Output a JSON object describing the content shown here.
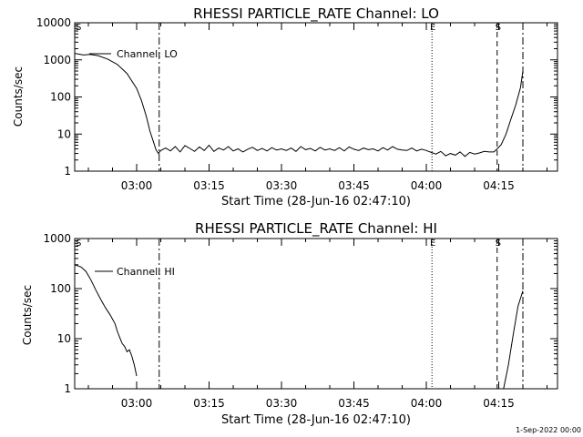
{
  "footer": {
    "date_stamp": "1-Sep-2022 00:00"
  },
  "chart_data": [
    {
      "type": "line",
      "title": "RHESSI PARTICLE_RATE Channel: LO",
      "xlabel": "Start Time (28-Jun-16 02:47:10)",
      "ylabel": "Counts/sec",
      "yscale": "log",
      "ylim": [
        1,
        10000
      ],
      "xlim": [
        "02:47:10",
        "04:27:10"
      ],
      "y_ticks": [
        "1",
        "10",
        "100",
        "1000",
        "10000"
      ],
      "x_ticks": [
        "03:00",
        "03:15",
        "03:30",
        "03:45",
        "04:00",
        "04:15"
      ],
      "legend": "Channel: LO",
      "legend_position": "top-left",
      "markers": [
        {
          "label": "S",
          "time": "02:47:10",
          "style": "none"
        },
        {
          "label": "",
          "time": "03:04:40",
          "style": "dash-dot"
        },
        {
          "label": "E",
          "time": "04:01:10",
          "style": "dotted"
        },
        {
          "label": "S",
          "time": "04:14:40",
          "style": "dashed"
        },
        {
          "label": "",
          "time": "04:20:00",
          "style": "dash-dot"
        }
      ],
      "series": [
        {
          "name": "Channel: LO",
          "x": [
            "02:47:10",
            "02:49:00",
            "02:50:20",
            "02:52:00",
            "02:54:00",
            "02:56:00",
            "02:58:00",
            "03:00:00",
            "03:01:00",
            "03:02:00",
            "03:02:45",
            "03:03:30",
            "03:04:00",
            "03:04:30",
            "03:05:00",
            "03:06:00",
            "03:07:00",
            "03:08:00",
            "03:09:00",
            "03:10:00",
            "03:11:00",
            "03:12:00",
            "03:13:00",
            "03:14:00",
            "03:15:00",
            "03:16:00",
            "03:17:00",
            "03:18:00",
            "03:19:00",
            "03:20:00",
            "03:21:00",
            "03:22:00",
            "03:23:00",
            "03:24:00",
            "03:25:00",
            "03:26:00",
            "03:27:00",
            "03:28:00",
            "03:29:00",
            "03:30:00",
            "03:31:00",
            "03:32:00",
            "03:33:00",
            "03:34:00",
            "03:35:00",
            "03:36:00",
            "03:37:00",
            "03:38:00",
            "03:39:00",
            "03:40:00",
            "03:41:00",
            "03:42:00",
            "03:43:00",
            "03:44:00",
            "03:45:00",
            "03:46:00",
            "03:47:00",
            "03:48:00",
            "03:49:00",
            "03:50:00",
            "03:51:00",
            "03:52:00",
            "03:53:00",
            "03:54:00",
            "03:55:00",
            "03:56:00",
            "03:57:00",
            "03:58:00",
            "03:59:00",
            "04:00:00",
            "04:01:00",
            "04:02:00",
            "04:03:00",
            "04:04:00",
            "04:05:00",
            "04:06:00",
            "04:07:00",
            "04:08:00",
            "04:09:00",
            "04:10:00",
            "04:11:00",
            "04:12:00",
            "04:13:00",
            "04:14:00",
            "04:14:40",
            "04:15:30",
            "04:16:30",
            "04:17:30",
            "04:18:30",
            "04:19:30",
            "04:20:00"
          ],
          "y": [
            1500,
            1350,
            1400,
            1300,
            1050,
            750,
            430,
            170,
            80,
            30,
            12,
            6,
            3.8,
            3.0,
            3.6,
            4.2,
            3.5,
            4.6,
            3.3,
            4.9,
            4.1,
            3.4,
            4.5,
            3.6,
            5.0,
            3.4,
            4.2,
            3.7,
            4.6,
            3.5,
            4.0,
            3.3,
            3.9,
            4.4,
            3.6,
            4.1,
            3.5,
            4.3,
            3.7,
            4.0,
            3.6,
            4.2,
            3.4,
            4.6,
            3.8,
            4.1,
            3.5,
            4.4,
            3.7,
            4.0,
            3.6,
            4.3,
            3.5,
            4.5,
            3.9,
            3.6,
            4.2,
            3.8,
            4.0,
            3.5,
            4.3,
            3.7,
            4.6,
            3.9,
            3.7,
            3.6,
            4.2,
            3.5,
            3.9,
            3.6,
            3.2,
            2.9,
            3.4,
            2.6,
            3.0,
            2.7,
            3.3,
            2.5,
            3.2,
            2.9,
            3.1,
            3.4,
            3.3,
            3.3,
            4.0,
            5.2,
            10,
            25,
            60,
            180,
            500
          ]
        }
      ]
    },
    {
      "type": "line",
      "title": "RHESSI PARTICLE_RATE Channel: HI",
      "xlabel": "Start Time (28-Jun-16 02:47:10)",
      "ylabel": "Counts/sec",
      "yscale": "log",
      "ylim": [
        1,
        1000
      ],
      "xlim": [
        "02:47:10",
        "04:27:10"
      ],
      "y_ticks": [
        "1",
        "10",
        "100",
        "1000"
      ],
      "x_ticks": [
        "03:00",
        "03:15",
        "03:30",
        "03:45",
        "04:00",
        "04:15"
      ],
      "legend": "Channel: HI",
      "legend_position": "top-left",
      "markers": [
        {
          "label": "S",
          "time": "02:47:10",
          "style": "none"
        },
        {
          "label": "",
          "time": "03:04:40",
          "style": "dash-dot"
        },
        {
          "label": "E",
          "time": "04:01:10",
          "style": "dotted"
        },
        {
          "label": "S",
          "time": "04:14:40",
          "style": "dashed"
        },
        {
          "label": "",
          "time": "04:20:00",
          "style": "dash-dot"
        }
      ],
      "series": [
        {
          "name": "Channel: HI",
          "segments": [
            {
              "x": [
                "02:47:10",
                "02:48:30",
                "02:49:30",
                "02:50:30",
                "02:51:30",
                "02:52:30",
                "02:53:30",
                "02:54:30",
                "02:55:30",
                "02:56:00",
                "02:56:30",
                "02:57:00",
                "02:57:30",
                "02:58:00",
                "02:58:30",
                "02:59:00",
                "02:59:30",
                "03:00:00"
              ],
              "y": [
                300,
                270,
                220,
                150,
                95,
                62,
                42,
                30,
                20,
                14,
                10.5,
                8,
                7,
                5.5,
                6,
                4.5,
                3,
                1.8
              ]
            },
            {
              "x": [
                "04:16:00",
                "04:17:00",
                "04:18:00",
                "04:19:00",
                "04:20:00"
              ],
              "y": [
                1,
                3,
                12,
                45,
                90
              ]
            }
          ]
        }
      ]
    }
  ]
}
